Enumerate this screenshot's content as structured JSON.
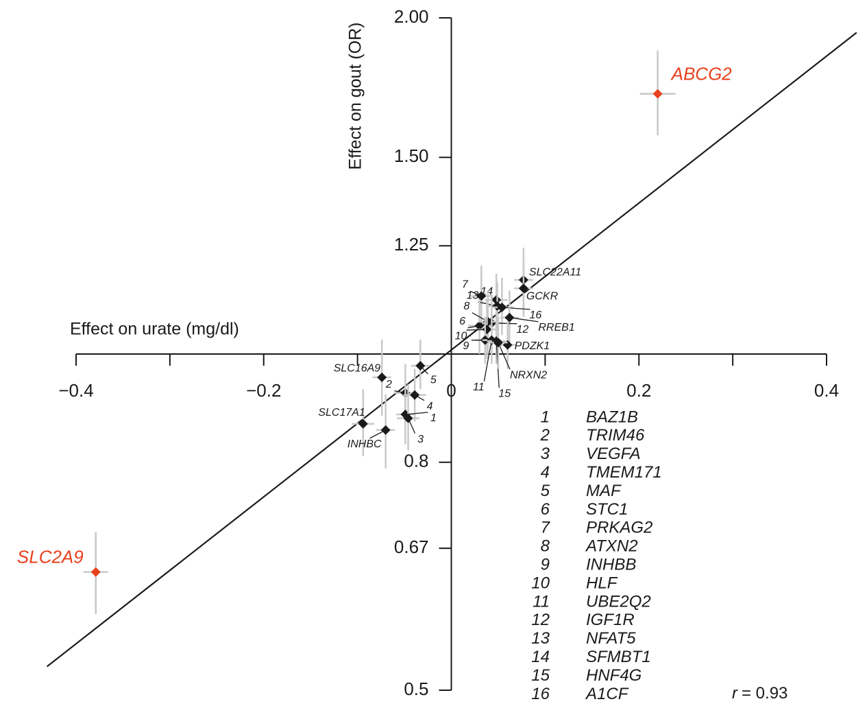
{
  "chart_data": {
    "type": "scatter",
    "xlabel": "Effect on urate (mg/dl)",
    "ylabel": "Effect on gout (OR)",
    "xlim": [
      -0.4,
      0.4
    ],
    "xticks": [
      {
        "value": -0.4,
        "label": "−0.4"
      },
      {
        "value": -0.2,
        "label": "−0.2"
      },
      0,
      0.2,
      0.4
    ],
    "xminorticks": [
      -0.3,
      -0.1,
      0.1,
      0.3
    ],
    "ylim": [
      0.5,
      2.0
    ],
    "yscale": "log",
    "yticks": [
      0.5,
      0.67,
      0.8,
      1.25,
      {
        "value": 1.5,
        "label": "1.50"
      },
      {
        "value": 2.0,
        "label": "2.00"
      }
    ],
    "fit_line": {
      "x": [
        -0.431,
        0.432
      ],
      "y": [
        0.525,
        1.94
      ],
      "color": "#1a1a1a"
    },
    "annotation": {
      "symbol": "r",
      "text": "= 0.93"
    },
    "points": [
      {
        "label": "ABCG2",
        "x": 0.22,
        "y": 1.71,
        "x_err": 0.019,
        "y_low": 1.57,
        "y_high": 1.87,
        "color": "#e8401c"
      },
      {
        "label": "SLC2A9",
        "x": -0.379,
        "y": 0.638,
        "x_err": 0.013,
        "y_low": 0.585,
        "y_high": 0.693,
        "color": "#e8401c"
      },
      {
        "label": "SLC22A11",
        "x": 0.077,
        "y": 1.165,
        "x_err": 0.01,
        "y_low": 1.09,
        "y_high": 1.245,
        "color": "#1a1a1a"
      },
      {
        "label": "GCKR",
        "x": 0.077,
        "y": 1.145,
        "x_err": 0.01,
        "y_low": 1.08,
        "y_high": 1.21,
        "color": "#1a1a1a"
      },
      {
        "label": "14",
        "x": 0.048,
        "y": 1.118,
        "x_err": 0.012,
        "y_low": 1.06,
        "y_high": 1.18,
        "color": "#1a1a1a"
      },
      {
        "label": "7",
        "x": 0.032,
        "y": 1.127,
        "x_err": 0.012,
        "y_low": 1.05,
        "y_high": 1.2,
        "color": "#1a1a1a"
      },
      {
        "label": "13",
        "x": 0.049,
        "y": 1.104,
        "x_err": 0.01,
        "y_low": 1.05,
        "y_high": 1.16,
        "color": "#1a1a1a"
      },
      {
        "label": "16",
        "x": 0.054,
        "y": 1.101,
        "x_err": 0.012,
        "y_low": 1.04,
        "y_high": 1.17,
        "color": "#1a1a1a"
      },
      {
        "label": "RREB1",
        "x": 0.062,
        "y": 1.078,
        "x_err": 0.01,
        "y_low": 1.02,
        "y_high": 1.14,
        "color": "#1a1a1a"
      },
      {
        "label": "12",
        "x": 0.043,
        "y": 1.066,
        "x_err": 0.012,
        "y_low": 1.01,
        "y_high": 1.13,
        "color": "#1a1a1a"
      },
      {
        "label": "6",
        "x": 0.03,
        "y": 1.06,
        "x_err": 0.012,
        "y_low": 1.0,
        "y_high": 1.12,
        "color": "#1a1a1a"
      },
      {
        "label": "8",
        "x": 0.039,
        "y": 1.069,
        "x_err": 0.01,
        "y_low": 1.0,
        "y_high": 1.14,
        "color": "#1a1a1a"
      },
      {
        "label": "10",
        "x": 0.038,
        "y": 1.052,
        "x_err": 0.01,
        "y_low": 0.99,
        "y_high": 1.12,
        "color": "#1a1a1a"
      },
      {
        "label": "9",
        "x": 0.036,
        "y": 1.029,
        "x_err": 0.01,
        "y_low": 0.98,
        "y_high": 1.08,
        "color": "#1a1a1a"
      },
      {
        "label": "11",
        "x": 0.043,
        "y": 1.029,
        "x_err": 0.01,
        "y_low": 0.98,
        "y_high": 1.09,
        "color": "#1a1a1a"
      },
      {
        "label": "15",
        "x": 0.048,
        "y": 1.027,
        "x_err": 0.01,
        "y_low": 0.98,
        "y_high": 1.08,
        "color": "#1a1a1a"
      },
      {
        "label": "PDZK1",
        "x": 0.06,
        "y": 1.019,
        "x_err": 0.01,
        "y_low": 0.97,
        "y_high": 1.07,
        "color": "#1a1a1a"
      },
      {
        "label": "NRXN2",
        "x": 0.05,
        "y": 1.024,
        "x_err": 0.01,
        "y_low": 0.97,
        "y_high": 1.08,
        "color": "#1a1a1a"
      },
      {
        "label": "5",
        "x": -0.033,
        "y": 0.976,
        "x_err": 0.01,
        "y_low": 0.93,
        "y_high": 1.03,
        "color": "#1a1a1a"
      },
      {
        "label": "SLC16A9",
        "x": -0.074,
        "y": 0.953,
        "x_err": 0.01,
        "y_low": 0.88,
        "y_high": 1.03,
        "color": "#1a1a1a"
      },
      {
        "label": "2",
        "x": -0.049,
        "y": 0.923,
        "x_err": 0.012,
        "y_low": 0.87,
        "y_high": 0.98,
        "color": "#1a1a1a"
      },
      {
        "label": "4",
        "x": -0.039,
        "y": 0.919,
        "x_err": 0.012,
        "y_low": 0.87,
        "y_high": 0.97,
        "color": "#1a1a1a"
      },
      {
        "label": "1",
        "x": -0.049,
        "y": 0.883,
        "x_err": 0.01,
        "y_low": 0.83,
        "y_high": 0.94,
        "color": "#1a1a1a"
      },
      {
        "label": "3",
        "x": -0.046,
        "y": 0.876,
        "x_err": 0.012,
        "y_low": 0.82,
        "y_high": 0.94,
        "color": "#1a1a1a"
      },
      {
        "label": "SLC17A1",
        "x": -0.094,
        "y": 0.866,
        "x_err": 0.012,
        "y_low": 0.81,
        "y_high": 0.93,
        "color": "#1a1a1a"
      },
      {
        "label": "INHBC",
        "x": -0.07,
        "y": 0.855,
        "x_err": 0.01,
        "y_low": 0.79,
        "y_high": 0.92,
        "color": "#1a1a1a"
      }
    ],
    "key": [
      {
        "number": 1,
        "name": "BAZ1B"
      },
      {
        "number": 2,
        "name": "TRIM46"
      },
      {
        "number": 3,
        "name": "VEGFA"
      },
      {
        "number": 4,
        "name": "TMEM171"
      },
      {
        "number": 5,
        "name": "MAF"
      },
      {
        "number": 6,
        "name": "STC1"
      },
      {
        "number": 7,
        "name": "PRKAG2"
      },
      {
        "number": 8,
        "name": "ATXN2"
      },
      {
        "number": 9,
        "name": "INHBB"
      },
      {
        "number": 10,
        "name": "HLF"
      },
      {
        "number": 11,
        "name": "UBE2Q2"
      },
      {
        "number": 12,
        "name": "IGF1R"
      },
      {
        "number": 13,
        "name": "NFAT5"
      },
      {
        "number": 14,
        "name": "SFMBT1"
      },
      {
        "number": 15,
        "name": "HNF4G"
      },
      {
        "number": 16,
        "name": "A1CF"
      }
    ]
  }
}
